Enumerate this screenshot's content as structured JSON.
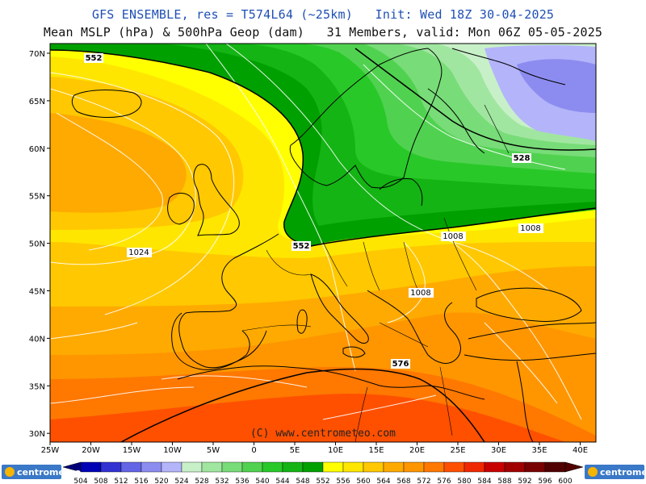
{
  "header": {
    "line1": "GFS ENSEMBLE, res = T574L64 (~25km)   Init: Wed 18Z 30-04-2025",
    "line2": "Mean MSLP (hPa) & 500hPa Geop (dam)   31 Members, valid: Mon 06Z 05-05-2025"
  },
  "axes": {
    "lat_labels": [
      "70N",
      "65N",
      "60N",
      "55N",
      "50N",
      "45N",
      "40N",
      "35N",
      "30N"
    ],
    "lon_labels": [
      "25W",
      "20W",
      "15W",
      "10W",
      "5W",
      "0",
      "5E",
      "10E",
      "15E",
      "20E",
      "25E",
      "30E",
      "35E",
      "40E"
    ]
  },
  "contour_labels": {
    "geop": [
      "552",
      "552",
      "528",
      "576"
    ],
    "mslp": [
      "1024",
      "1008",
      "1008",
      "1008"
    ]
  },
  "watermark": "(C) www.centrometeo.com",
  "colorbar": {
    "values": [
      "504",
      "508",
      "512",
      "516",
      "520",
      "524",
      "528",
      "532",
      "536",
      "540",
      "544",
      "548",
      "552",
      "556",
      "560",
      "564",
      "568",
      "572",
      "576",
      "580",
      "584",
      "588",
      "592",
      "596",
      "600"
    ],
    "colors": [
      "#000078",
      "#0000b4",
      "#3232d2",
      "#6464e6",
      "#8c8cf0",
      "#b4b4fa",
      "#c8f0c8",
      "#a0e6a0",
      "#78dc78",
      "#50d250",
      "#28c828",
      "#14b414",
      "#00a000",
      "#ffff00",
      "#ffe600",
      "#ffc800",
      "#ffaa00",
      "#ff9600",
      "#ff7800",
      "#ff5000",
      "#f02800",
      "#c80000",
      "#a00000",
      "#780000",
      "#500000"
    ],
    "logo_left": "centrometeo",
    "logo_right": "centrometeo"
  }
}
